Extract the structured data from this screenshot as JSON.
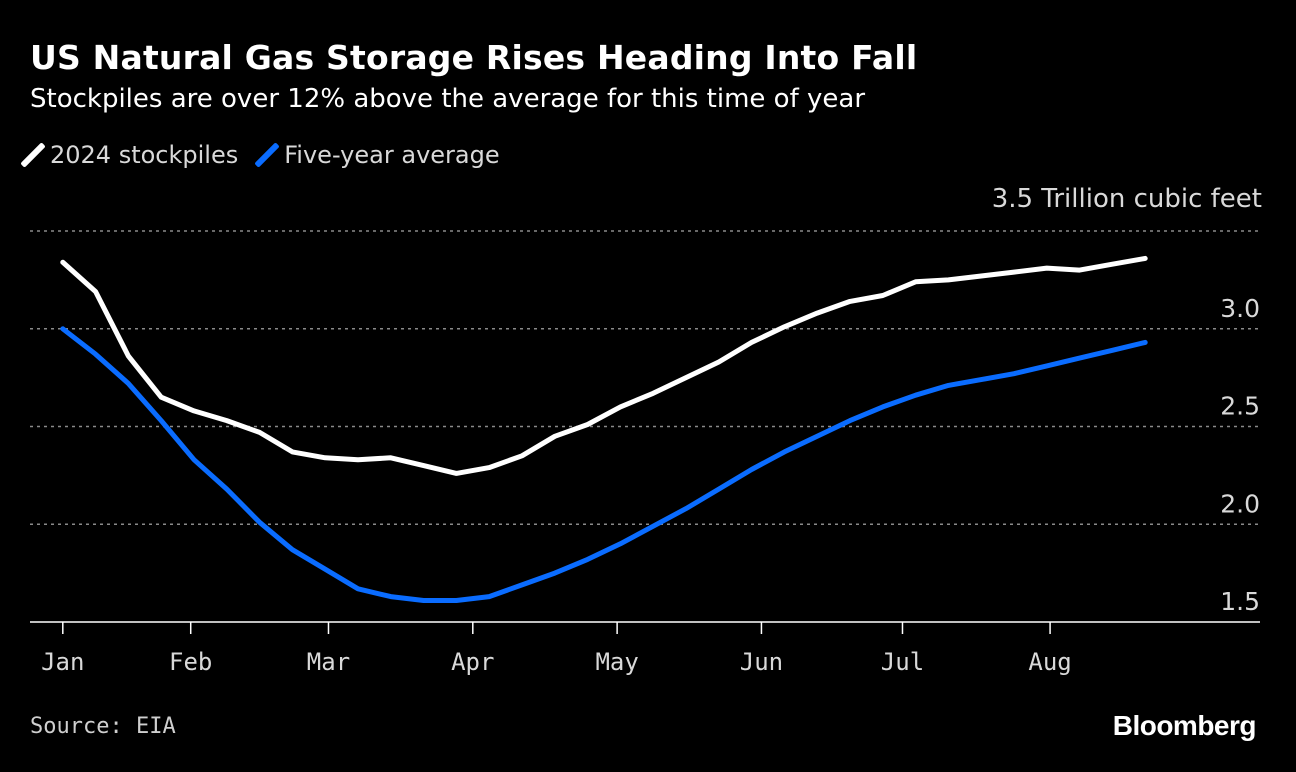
{
  "title": "US Natural Gas Storage Rises Heading Into Fall",
  "subtitle": "Stockpiles are over 12% above the average for this time of year",
  "unit_label": "3.5 Trillion cubic feet",
  "source": "Source: EIA",
  "brand": "Bloomberg",
  "colors": {
    "background": "#000000",
    "series_2024": "#ffffff",
    "series_avg": "#0a6cff",
    "grid": "#8a8a8a"
  },
  "legend": [
    {
      "name": "2024 stockpiles",
      "color": "#ffffff"
    },
    {
      "name": "Five-year average",
      "color": "#0a6cff"
    }
  ],
  "chart_data": {
    "type": "line",
    "title": "US Natural Gas Storage Rises Heading Into Fall",
    "ylabel": "Trillion cubic feet",
    "ylim": [
      1.5,
      3.5
    ],
    "yticks": [
      1.5,
      2.0,
      2.5,
      3.0,
      3.5
    ],
    "ytick_labels": [
      "1.5",
      "2.0",
      "2.5",
      "3.0",
      "3.5"
    ],
    "grid": true,
    "legend_position": "top-left",
    "xticks": [
      {
        "label": "Jan",
        "week": 0
      },
      {
        "label": "Feb",
        "week": 3.9
      },
      {
        "label": "Mar",
        "week": 8.1
      },
      {
        "label": "Apr",
        "week": 12.5
      },
      {
        "label": "May",
        "week": 16.9
      },
      {
        "label": "Jun",
        "week": 21.3
      },
      {
        "label": "Jul",
        "week": 25.6
      },
      {
        "label": "Aug",
        "week": 30.1
      }
    ],
    "x_range": [
      -1,
      36.5
    ],
    "x": [
      0,
      1,
      2,
      3,
      4,
      5,
      6,
      7,
      8,
      9,
      10,
      11,
      12,
      13,
      14,
      15,
      16,
      17,
      18,
      19,
      20,
      21,
      22,
      23,
      24,
      25,
      26,
      27,
      28,
      29,
      30,
      31,
      32,
      33
    ],
    "series": [
      {
        "name": "2024 stockpiles",
        "color": "#ffffff",
        "values": [
          3.34,
          3.19,
          2.86,
          2.65,
          2.58,
          2.53,
          2.47,
          2.37,
          2.34,
          2.33,
          2.34,
          2.3,
          2.26,
          2.29,
          2.35,
          2.45,
          2.51,
          2.6,
          2.67,
          2.75,
          2.83,
          2.93,
          3.01,
          3.08,
          3.14,
          3.17,
          3.24,
          3.25,
          3.27,
          3.29,
          3.31,
          3.3,
          3.33,
          3.36
        ]
      },
      {
        "name": "Five-year average",
        "color": "#0a6cff",
        "values": [
          3.0,
          2.87,
          2.72,
          2.53,
          2.33,
          2.18,
          2.01,
          1.87,
          1.77,
          1.67,
          1.63,
          1.61,
          1.61,
          1.63,
          1.69,
          1.75,
          1.82,
          1.9,
          1.99,
          2.08,
          2.18,
          2.28,
          2.37,
          2.45,
          2.53,
          2.6,
          2.66,
          2.71,
          2.74,
          2.77,
          2.81,
          2.85,
          2.89,
          2.93
        ]
      }
    ]
  }
}
